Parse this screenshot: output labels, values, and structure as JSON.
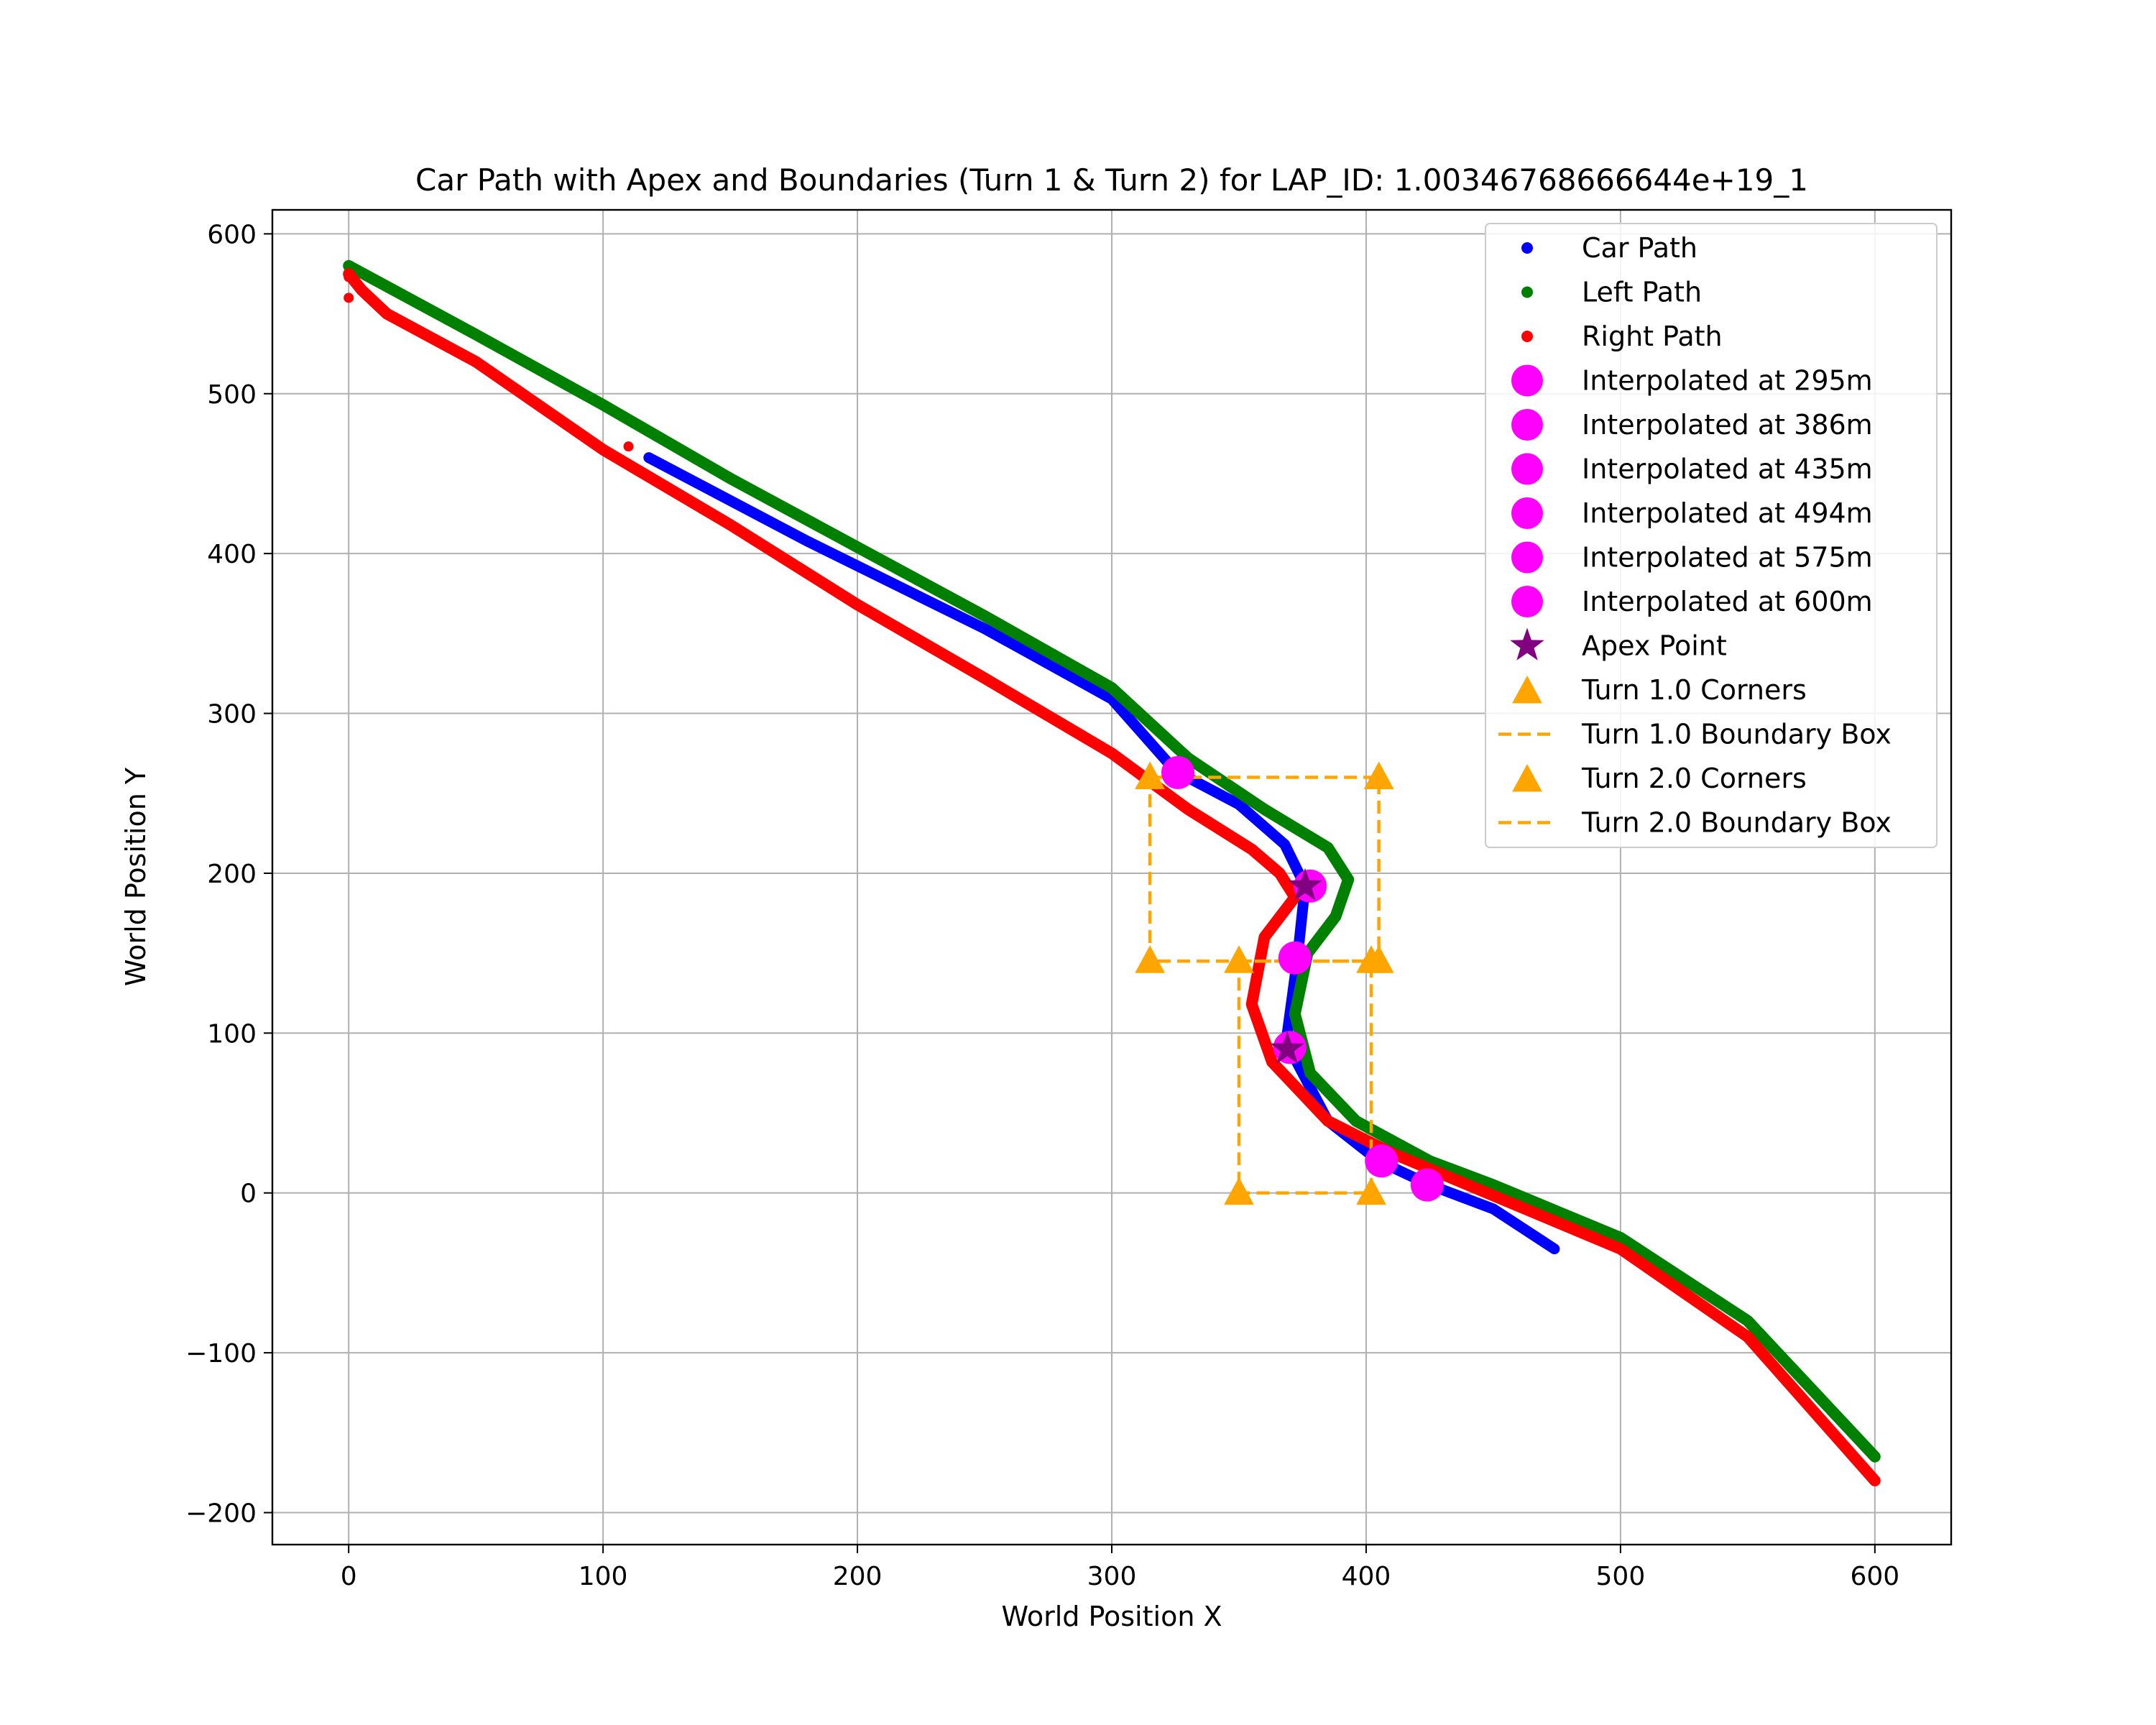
{
  "chart_data": {
    "type": "scatter",
    "title": "Car Path with Apex and Boundaries (Turn 1 & Turn 2) for LAP_ID: 1.00346768666644e+19_1",
    "xlabel": "World Position X",
    "ylabel": "World Position Y",
    "xlim": [
      -30,
      630
    ],
    "ylim": [
      -220,
      615
    ],
    "xticks": [
      0,
      100,
      200,
      300,
      400,
      500,
      600
    ],
    "yticks": [
      -200,
      -100,
      0,
      100,
      200,
      300,
      400,
      500,
      600
    ],
    "xtick_labels": [
      "0",
      "100",
      "200",
      "300",
      "400",
      "500",
      "600"
    ],
    "ytick_labels": [
      "−200",
      "−100",
      "0",
      "100",
      "200",
      "300",
      "400",
      "500",
      "600"
    ],
    "grid": true,
    "legend_position": "upper right",
    "series": [
      {
        "name": "Car Path",
        "kind": "path",
        "color": "#0000ff",
        "points": [
          [
            118,
            460
          ],
          [
            180,
            408
          ],
          [
            250,
            353
          ],
          [
            300,
            309
          ],
          [
            325,
            264
          ],
          [
            350,
            243
          ],
          [
            368,
            218
          ],
          [
            376,
            192
          ],
          [
            373,
            147
          ],
          [
            369,
            100
          ],
          [
            370,
            90
          ],
          [
            385,
            45
          ],
          [
            405,
            20
          ],
          [
            425,
            5
          ],
          [
            450,
            -10
          ],
          [
            474,
            -35
          ]
        ]
      },
      {
        "name": "Left Path",
        "kind": "path",
        "color": "#008000",
        "points": [
          [
            0,
            580
          ],
          [
            50,
            537
          ],
          [
            100,
            493
          ],
          [
            150,
            447
          ],
          [
            200,
            404
          ],
          [
            250,
            361
          ],
          [
            300,
            316
          ],
          [
            330,
            272
          ],
          [
            360,
            240
          ],
          [
            385,
            216
          ],
          [
            393,
            196
          ],
          [
            388,
            173
          ],
          [
            377,
            150
          ],
          [
            372,
            112
          ],
          [
            378,
            75
          ],
          [
            396,
            45
          ],
          [
            425,
            20
          ],
          [
            450,
            5
          ],
          [
            500,
            -28
          ],
          [
            550,
            -80
          ],
          [
            600,
            -165
          ]
        ]
      },
      {
        "name": "Right Path",
        "kind": "path",
        "color": "#ff0000",
        "points": [
          [
            0,
            575
          ],
          [
            5,
            565
          ],
          [
            15,
            550
          ],
          [
            50,
            520
          ],
          [
            100,
            465
          ],
          [
            150,
            418
          ],
          [
            200,
            368
          ],
          [
            250,
            322
          ],
          [
            300,
            275
          ],
          [
            330,
            240
          ],
          [
            355,
            215
          ],
          [
            366,
            200
          ],
          [
            372,
            185
          ],
          [
            360,
            160
          ],
          [
            355,
            118
          ],
          [
            363,
            82
          ],
          [
            385,
            45
          ],
          [
            410,
            25
          ],
          [
            440,
            5
          ],
          [
            500,
            -35
          ],
          [
            550,
            -90
          ],
          [
            600,
            -180
          ]
        ]
      },
      {
        "name": "Right Path",
        "kind": "points",
        "color": "#ff0000",
        "points": [
          [
            110,
            467
          ],
          [
            0,
            573
          ],
          [
            0,
            560
          ]
        ]
      }
    ],
    "interpolated_points": [
      {
        "name": "Interpolated at 295m",
        "x": 326,
        "y": 263
      },
      {
        "name": "Interpolated at 386m",
        "x": 378,
        "y": 192
      },
      {
        "name": "Interpolated at 435m",
        "x": 372,
        "y": 147
      },
      {
        "name": "Interpolated at 494m",
        "x": 370,
        "y": 91
      },
      {
        "name": "Interpolated at 575m",
        "x": 406,
        "y": 20
      },
      {
        "name": "Interpolated at 600m",
        "x": 424,
        "y": 5
      }
    ],
    "interpolated_color": "#ff00ff",
    "apex_points": {
      "name": "Apex Point",
      "color": "#800080",
      "points": [
        [
          376,
          192
        ],
        [
          369,
          90
        ]
      ]
    },
    "turns": [
      {
        "corners_name": "Turn 1.0 Corners",
        "box_name": "Turn 1.0 Boundary Box",
        "color": "#ffa500",
        "xmin": 315,
        "xmax": 405,
        "ymin": 145,
        "ymax": 260
      },
      {
        "corners_name": "Turn 2.0 Corners",
        "box_name": "Turn 2.0 Boundary Box",
        "color": "#ffa500",
        "xmin": 350,
        "xmax": 402,
        "ymin": 0,
        "ymax": 145
      }
    ],
    "legend": [
      {
        "label": "Car Path",
        "marker": "dot",
        "color": "#0000ff"
      },
      {
        "label": "Left Path",
        "marker": "dot",
        "color": "#008000"
      },
      {
        "label": "Right Path",
        "marker": "dot",
        "color": "#ff0000"
      },
      {
        "label": "Interpolated at 295m",
        "marker": "big-dot",
        "color": "#ff00ff"
      },
      {
        "label": "Interpolated at 386m",
        "marker": "big-dot",
        "color": "#ff00ff"
      },
      {
        "label": "Interpolated at 435m",
        "marker": "big-dot",
        "color": "#ff00ff"
      },
      {
        "label": "Interpolated at 494m",
        "marker": "big-dot",
        "color": "#ff00ff"
      },
      {
        "label": "Interpolated at 575m",
        "marker": "big-dot",
        "color": "#ff00ff"
      },
      {
        "label": "Interpolated at 600m",
        "marker": "big-dot",
        "color": "#ff00ff"
      },
      {
        "label": "Apex Point",
        "marker": "star",
        "color": "#800080"
      },
      {
        "label": "Turn 1.0 Corners",
        "marker": "triangle",
        "color": "#ffa500"
      },
      {
        "label": "Turn 1.0 Boundary Box",
        "marker": "dash",
        "color": "#ffa500"
      },
      {
        "label": "Turn 2.0 Corners",
        "marker": "triangle",
        "color": "#ffa500"
      },
      {
        "label": "Turn 2.0 Boundary Box",
        "marker": "dash",
        "color": "#ffa500"
      }
    ]
  }
}
